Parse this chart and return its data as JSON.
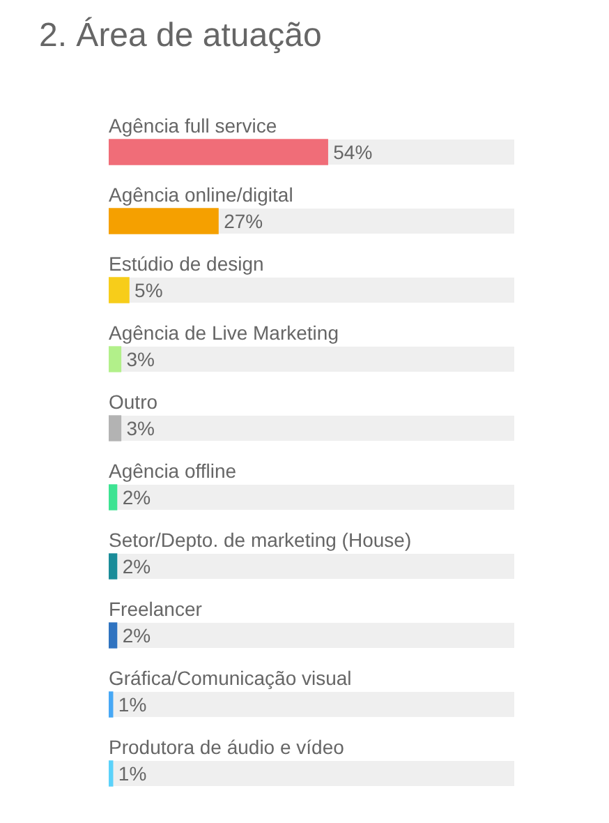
{
  "chart_data": {
    "type": "bar",
    "title": "2. Área de atuação",
    "orientation": "horizontal",
    "tick_labels": "y",
    "categories": [
      "Agência full service",
      "Agência online/digital",
      "Estúdio de design",
      "Agência de Live Marketing",
      "Outro",
      "Agência offline",
      "Setor/Depto. de marketing (House)",
      "Freelancer",
      "Gráfica/Comunicação visual",
      "Produtora de áudio e vídeo"
    ],
    "values": [
      54,
      27,
      5,
      3,
      3,
      2,
      2,
      2,
      1,
      1
    ],
    "colors": [
      "#f06d78",
      "#f5a000",
      "#f7cd1a",
      "#b2f08a",
      "#b3b3b3",
      "#3de392",
      "#1a8c99",
      "#2f73c0",
      "#47a8f5",
      "#5bd2fa"
    ],
    "value_labels": [
      "54%",
      "27%",
      "5%",
      "3%",
      "3%",
      "2%",
      "2%",
      "2%",
      "1%",
      "1%"
    ],
    "xlim": [
      0,
      100
    ]
  }
}
